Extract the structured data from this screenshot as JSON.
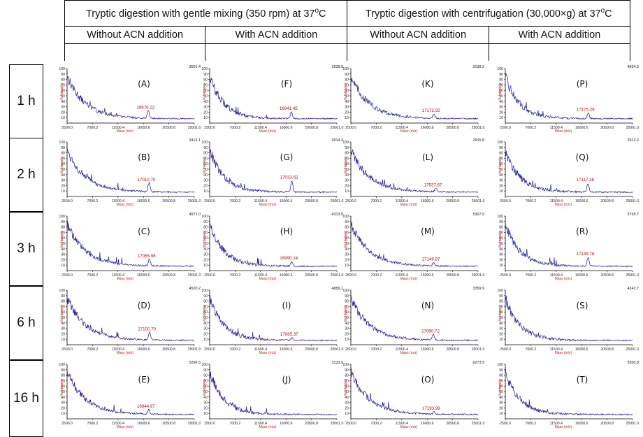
{
  "header": {
    "group1": {
      "pre": "Tryptic digestion with gentle mixing (350 rpm) at 37",
      "sup": "o",
      "post": "C"
    },
    "group2": {
      "pre": "Tryptic digestion with centrifugation (30,000×g) at 37",
      "sup": "o",
      "post": "C"
    },
    "sub_headers": [
      "Without ACN addition",
      "With ACN addition",
      "Without ACN addition",
      "With ACN addition"
    ]
  },
  "rows": [
    "1 h",
    "2 h",
    "3 h",
    "6 h",
    "16 h"
  ],
  "axis": {
    "ylabel": "% Intensity",
    "xlabel": "Mass (m/z)",
    "yticks": [
      "100",
      "90",
      "80",
      "70",
      "60",
      "50",
      "40",
      "30",
      "20",
      "10"
    ],
    "xticks": [
      "2500.0",
      "7000.2",
      "11500.4",
      "16000.6",
      "20500.8",
      "25001.0"
    ]
  },
  "chart_data": {
    "type": "line",
    "x_range": [
      2500.0,
      25001.0
    ],
    "y_range": [
      0,
      100
    ],
    "panels": [
      {
        "letter": "(A)",
        "row": 0,
        "col": 0,
        "peak_label": "16876.22",
        "peak_x": 16876.22,
        "peak_y": 20,
        "max_counts": "3501.4"
      },
      {
        "letter": "(F)",
        "row": 0,
        "col": 1,
        "peak_label": "16941.45",
        "peak_x": 16941.45,
        "peak_y": 18,
        "max_counts": "2639.9"
      },
      {
        "letter": "(K)",
        "row": 0,
        "col": 2,
        "peak_label": "17172.92",
        "peak_x": 17172.92,
        "peak_y": 14,
        "max_counts": "3139.2"
      },
      {
        "letter": "(P)",
        "row": 0,
        "col": 3,
        "peak_label": "17175.29",
        "peak_x": 17175.29,
        "peak_y": 16,
        "max_counts": "4854.5"
      },
      {
        "letter": "(B)",
        "row": 1,
        "col": 0,
        "peak_label": "17010.70",
        "peak_x": 17010.7,
        "peak_y": 22,
        "max_counts": "3413.1"
      },
      {
        "letter": "(G)",
        "row": 1,
        "col": 1,
        "peak_label": "17033.62",
        "peak_x": 17033.62,
        "peak_y": 26,
        "max_counts": "4914.3"
      },
      {
        "letter": "(L)",
        "row": 1,
        "col": 2,
        "peak_label": "17537.67",
        "peak_x": 17537.67,
        "peak_y": 12,
        "max_counts": "2915.8"
      },
      {
        "letter": "(Q)",
        "row": 1,
        "col": 3,
        "peak_label": "17117.26",
        "peak_x": 17117.26,
        "peak_y": 22,
        "max_counts": "2913.2"
      },
      {
        "letter": "(C)",
        "row": 2,
        "col": 0,
        "peak_label": "17055.96",
        "peak_x": 17055.96,
        "peak_y": 18,
        "max_counts": "4971.0"
      },
      {
        "letter": "(H)",
        "row": 2,
        "col": 1,
        "peak_label": "16990.14",
        "peak_x": 16990.14,
        "peak_y": 14,
        "max_counts": "4313.5"
      },
      {
        "letter": "(M)",
        "row": 2,
        "col": 2,
        "peak_label": "17146.87",
        "peak_x": 17146.87,
        "peak_y": 12,
        "max_counts": "5307.9"
      },
      {
        "letter": "(R)",
        "row": 2,
        "col": 3,
        "peak_label": "17139.78",
        "peak_x": 17139.78,
        "peak_y": 22,
        "max_counts": "3755.7"
      },
      {
        "letter": "(D)",
        "row": 3,
        "col": 0,
        "peak_label": "17100.70",
        "peak_x": 17100.7,
        "peak_y": 20,
        "max_counts": "4520.2"
      },
      {
        "letter": "(I)",
        "row": 3,
        "col": 1,
        "peak_label": "17065.37",
        "peak_x": 17065.37,
        "peak_y": 10,
        "max_counts": "4889.1"
      },
      {
        "letter": "(N)",
        "row": 3,
        "col": 2,
        "peak_label": "17090.72",
        "peak_x": 17090.72,
        "peak_y": 16,
        "max_counts": "3359.9"
      },
      {
        "letter": "(S)",
        "row": 3,
        "col": 3,
        "peak_label": "",
        "peak_x": null,
        "peak_y": null,
        "max_counts": "4243.7"
      },
      {
        "letter": "(E)",
        "row": 4,
        "col": 0,
        "peak_label": "16944.97",
        "peak_x": 16944.97,
        "peak_y": 14,
        "max_counts": "5296.5"
      },
      {
        "letter": "(J)",
        "row": 4,
        "col": 1,
        "peak_label": "",
        "peak_x": null,
        "peak_y": null,
        "max_counts": "3133.9"
      },
      {
        "letter": "(O)",
        "row": 4,
        "col": 2,
        "peak_label": "17193.99",
        "peak_x": 17193.99,
        "peak_y": 10,
        "max_counts": "6273.9"
      },
      {
        "letter": "(T)",
        "row": 4,
        "col": 3,
        "peak_label": "",
        "peak_x": null,
        "peak_y": null,
        "max_counts": "5350.9"
      }
    ]
  },
  "colors": {
    "trace": "#1a1aa0",
    "peak_label": "#b01010",
    "axis_label": "#d01818",
    "text": "#111111"
  }
}
